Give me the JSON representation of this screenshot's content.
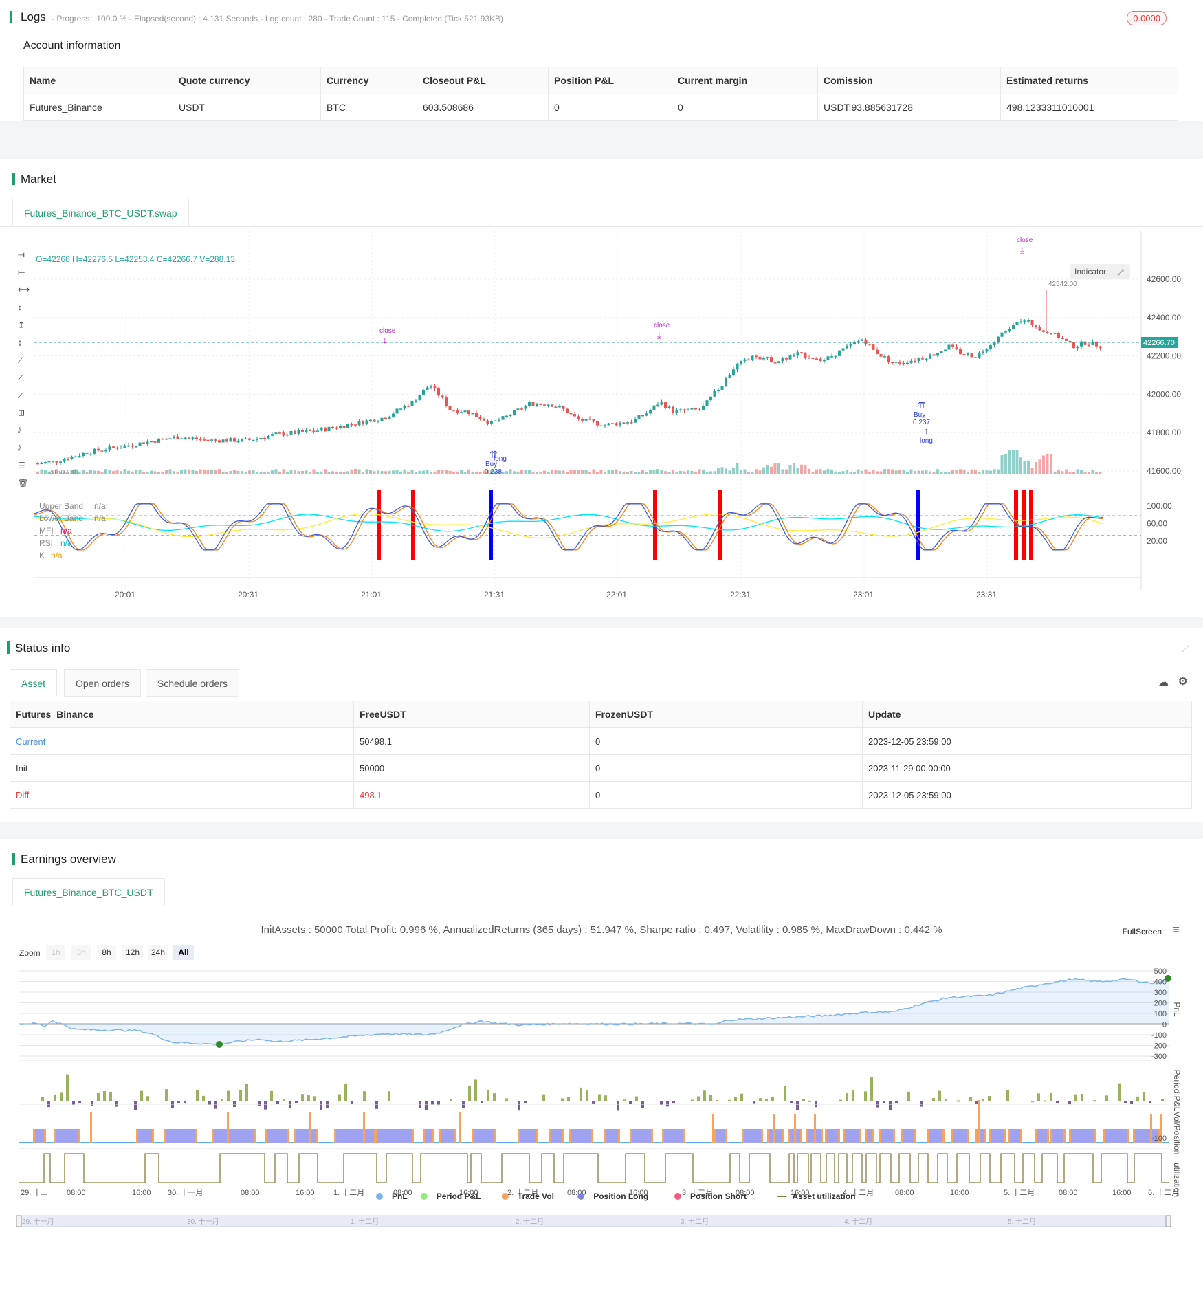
{
  "logs": {
    "title": "Logs",
    "summary": "- Progress : 100.0 % - Elapsed(second) : 4.131 Seconds - Log count : 280 - Trade Count : 115 - Completed (Tick 521.93KB)",
    "badge": "0.0000"
  },
  "account": {
    "title": "Account information",
    "headers": [
      "Name",
      "Quote currency",
      "Currency",
      "Closeout P&L",
      "Position P&L",
      "Current margin",
      "Comission",
      "Estimated returns"
    ],
    "row": [
      "Futures_Binance",
      "USDT",
      "BTC",
      "603.508686",
      "0",
      "0",
      "USDT:93.885631728",
      "498.1233311010001"
    ]
  },
  "market": {
    "title": "Market",
    "tab": "Futures_Binance_BTC_USDT:swap",
    "ohlc": "O=42266 H=42276.5 L=42253.4 C=42266.7 V=288.13",
    "indicator_btn": "Indicator",
    "price_ticks": [
      "42600.00",
      "42400.00",
      "42200.00",
      "42000.00",
      "41800.00",
      "41600.00"
    ],
    "last_price": "42266.70",
    "high_label": "42542.00",
    "low_label": "41607.40",
    "osc_ticks": [
      "100.00",
      "60.00",
      "20.00"
    ],
    "time_ticks": [
      "20:01",
      "20:31",
      "21:01",
      "21:31",
      "22:01",
      "22:31",
      "23:01",
      "23:31"
    ],
    "legend": [
      {
        "name": "Upper Band",
        "value": "n/a",
        "color": "#888888"
      },
      {
        "name": "Lower Band",
        "value": "n/a",
        "color": "#888888"
      },
      {
        "name": "MFI",
        "value": "n/a",
        "color": "#e91e63"
      },
      {
        "name": "RSI",
        "value": "n/a",
        "color": "#00bcd4"
      },
      {
        "name": "K",
        "value": "n/a",
        "color": "#ff9800"
      }
    ],
    "signals": {
      "close1": "close",
      "buy1": "Buy",
      "buy1_qty": "0.238",
      "long1": "long",
      "close2": "close",
      "buy2": "Buy",
      "buy2_qty": "0.237",
      "long2": "long",
      "close3": "close"
    },
    "colors": {
      "up": "#26a69a",
      "down": "#ef5350",
      "accent": "#1e9e6e"
    }
  },
  "status": {
    "title": "Status info",
    "tabs": [
      "Asset",
      "Open orders",
      "Schedule orders"
    ],
    "headers": [
      "Futures_Binance",
      "FreeUSDT",
      "FrozenUSDT",
      "Update"
    ],
    "rows": [
      [
        "Current",
        "50498.1",
        "0",
        "2023-12-05 23:59:00"
      ],
      [
        "Init",
        "50000",
        "0",
        "2023-11-29 00:00:00"
      ],
      [
        "Diff",
        "498.1",
        "0",
        "2023-12-05 23:59:00"
      ]
    ]
  },
  "earnings": {
    "title": "Earnings overview",
    "tab": "Futures_Binance_BTC_USDT",
    "summary": "InitAssets : 50000 Total Profit: 0.996 %, AnnualizedReturns (365 days) : 51.947 %, Sharpe ratio : 0.497, Volatility : 0.985 %, MaxDrawDown : 0.442 %",
    "fullscreen": "FullScreen",
    "zoom_label": "Zoom",
    "zoom_buttons": [
      "1h",
      "3h",
      "8h",
      "12h",
      "24h",
      "All"
    ],
    "pnl_ticks": [
      "500",
      "400",
      "300",
      "200",
      "100",
      "0",
      "-100",
      "-200",
      "-300"
    ],
    "period_ticks": [
      "-100"
    ],
    "axis_titles": [
      "PnL",
      "Period P&L",
      "Vol/Position",
      "utilization"
    ],
    "x_ticks": [
      "29. 十...",
      "08:00",
      "16:00",
      "30. 十一月",
      "08:00",
      "16:00",
      "1. 十二月",
      "08:00",
      "16:00",
      "2. 十二月",
      "08:00",
      "16:00",
      "3. 十二月",
      "08:00",
      "16:00",
      "4. 十二月",
      "08:00",
      "16:00",
      "5. 十二月",
      "08:00",
      "16:00",
      "6. 十二月"
    ],
    "navigator_ticks": [
      "29. 十一月",
      "30. 十一月",
      "1. 十二月",
      "2. 十二月",
      "3. 十二月",
      "4. 十二月",
      "5. 十二月"
    ],
    "legend": [
      {
        "name": "PnL",
        "color": "#7cb5ec"
      },
      {
        "name": "Period P&L",
        "color": "#90ed7d"
      },
      {
        "name": "Trade Vol",
        "color": "#f7a35c"
      },
      {
        "name": "Position Long",
        "color": "#8085e9"
      },
      {
        "name": "Position Short",
        "color": "#f15c80"
      },
      {
        "name": "Asset utilization",
        "color": "#8d7a3e"
      }
    ]
  }
}
